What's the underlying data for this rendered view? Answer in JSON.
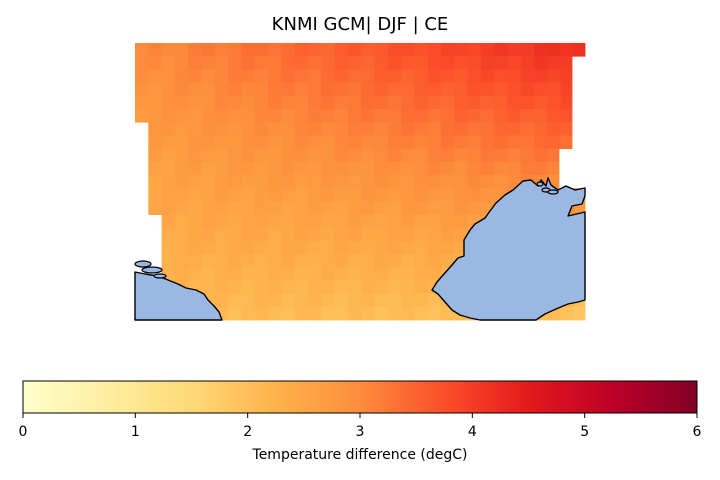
{
  "title": "KNMI GCM| DJF | CE",
  "colorbar": {
    "label": "Temperature difference (degC)",
    "min": 0,
    "max": 6,
    "ticks": [
      0,
      1,
      2,
      3,
      4,
      5,
      6
    ],
    "colormap": "YlOrRd",
    "stops": [
      "#ffffcc",
      "#ffeda0",
      "#fed976",
      "#feb24c",
      "#fd8d3c",
      "#fc4e2a",
      "#e31a1c",
      "#bd0026",
      "#800026"
    ]
  },
  "colors": {
    "land": "#9ab8e2",
    "coastline": "#000000"
  }
}
